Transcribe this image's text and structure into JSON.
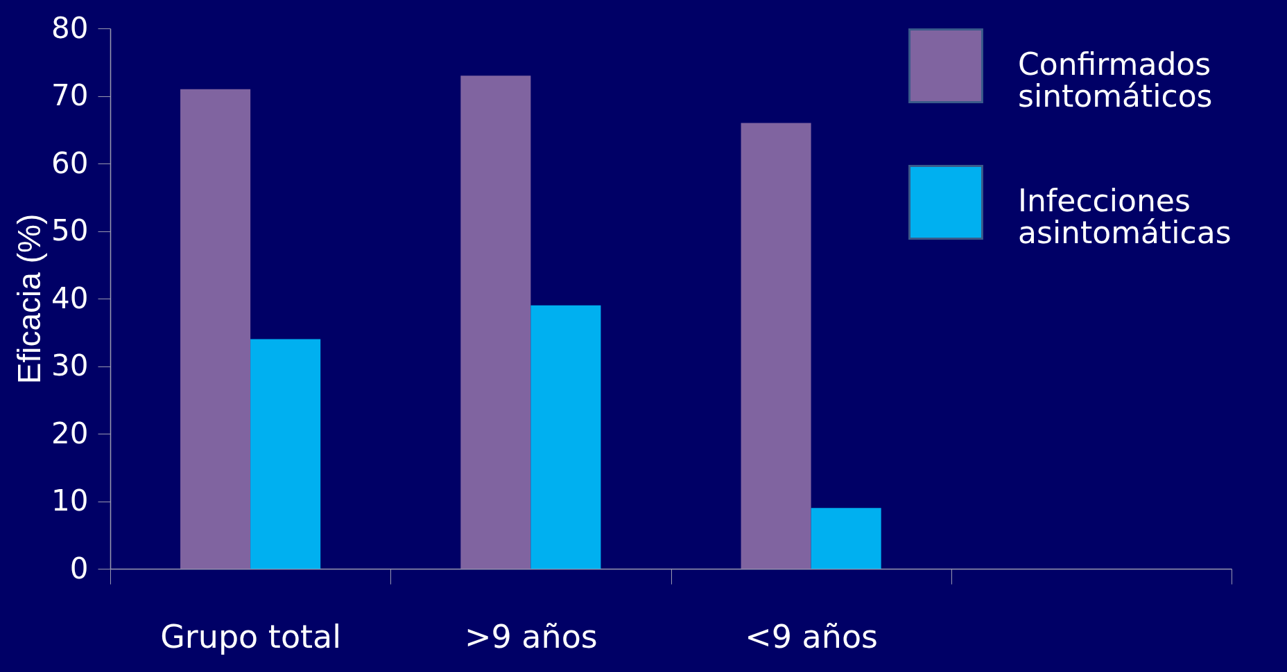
{
  "chart_data": {
    "type": "bar",
    "ylabel": "Eficacia (%)",
    "categories": [
      "Grupo total",
      ">9 años",
      "<9 años",
      null
    ],
    "series": [
      {
        "name": "Confirmados sintomáticos",
        "color": "#8064a0",
        "values": [
          71,
          73,
          66,
          null
        ]
      },
      {
        "name": "Infecciones asintomáticas",
        "color": "#00b0f0",
        "values": [
          34,
          39,
          9,
          null
        ]
      }
    ],
    "ylim": [
      0,
      80
    ],
    "yticks": [
      0,
      10,
      20,
      30,
      40,
      50,
      60,
      70,
      80
    ],
    "grid": false,
    "legend": "top right"
  }
}
